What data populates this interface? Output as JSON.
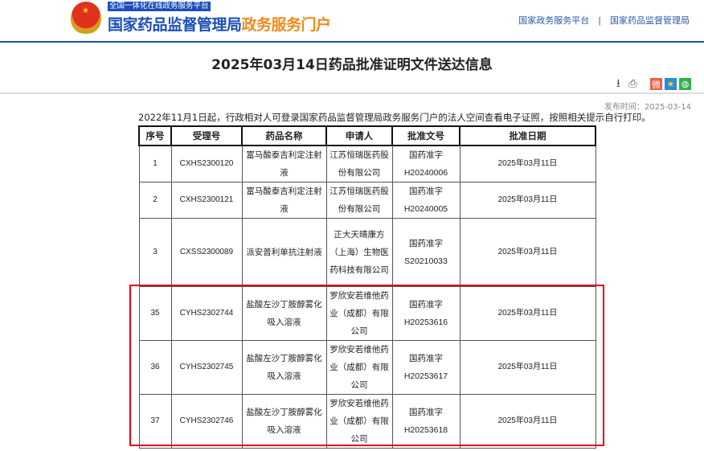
{
  "header": {
    "subtitle": "全国一体化在线政务服务平台",
    "brand_main": "国家药品监督管理局",
    "brand_accent": "政务服务门户",
    "links": [
      "国家政务服务平台",
      "国家药品监督管理局"
    ],
    "separator": "|"
  },
  "page": {
    "title": "2025年03月14日药品批准证明文件送达信息",
    "publish_time": "发布时间：2025-03-14",
    "notice": "2022年11月1日起，行政相对人可登录国家药品监督管理局政务服务门户的法人空间查看电子证照，按照相关提示自行打印。"
  },
  "toolbar": {
    "icons": [
      "download-icon",
      "print-icon",
      "weibo-icon",
      "qzone-icon",
      "wechat-icon"
    ]
  },
  "table": {
    "headers": [
      "序号",
      "受理号",
      "药品名称",
      "申请人",
      "批准文号",
      "批准日期"
    ],
    "rows": [
      [
        "1",
        "CXHS2300120",
        "富马酸泰吉利定注射液",
        "江苏恒瑞医药股份有限公司",
        "国药准字H20240006",
        "2025年03月11日"
      ],
      [
        "2",
        "CXHS2300121",
        "富马酸泰吉利定注射液",
        "江苏恒瑞医药股份有限公司",
        "国药准字H20240005",
        "2025年03月11日"
      ],
      [
        "3",
        "CXSS2300089",
        "派安普利单抗注射液",
        "正大天晴康方（上海）生物医药科技有限公司",
        "国药准字S20210033",
        "2025年03月11日"
      ],
      [
        "35",
        "CYHS2302744",
        "盐酸左沙丁胺醇雾化吸入溶液",
        "罗欣安若维他药业（成都）有限公司",
        "国药准字H20253616",
        "2025年03月11日"
      ],
      [
        "36",
        "CYHS2302745",
        "盐酸左沙丁胺醇雾化吸入溶液",
        "罗欣安若维他药业（成都）有限公司",
        "国药准字H20253617",
        "2025年03月11日"
      ],
      [
        "37",
        "CYHS2302746",
        "盐酸左沙丁胺醇雾化吸入溶液",
        "罗欣安若维他药业（成都）有限公司",
        "国药准字H20253618",
        "2025年03月11日"
      ]
    ]
  },
  "colors": {
    "brand_blue": "#1a4fb8",
    "accent_orange": "#f08a1c",
    "highlight_red": "#e0001a"
  }
}
